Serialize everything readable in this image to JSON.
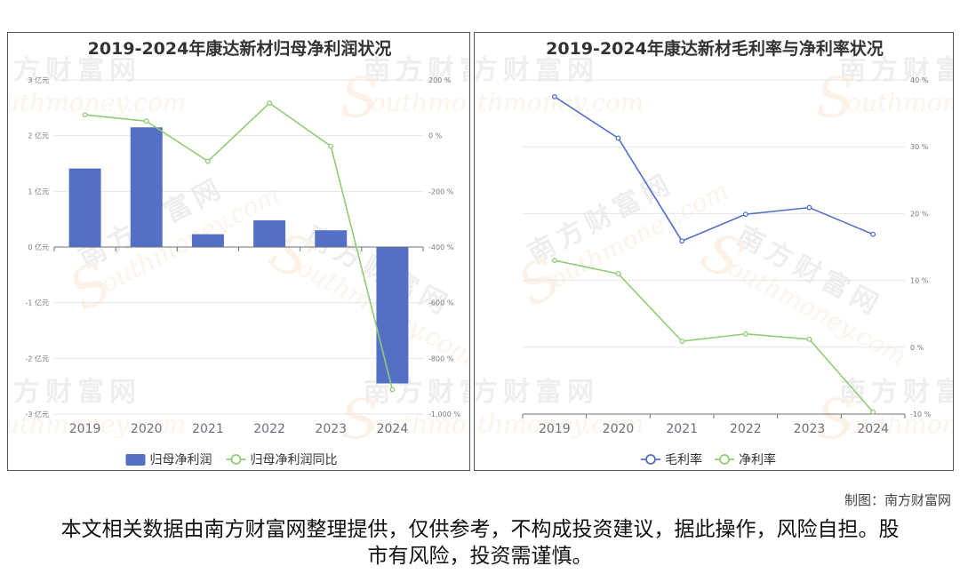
{
  "charts": [
    {
      "type": "bar+line",
      "title": "2019-2024年康达新材归母净利润状况",
      "categories": [
        "2019",
        "2020",
        "2021",
        "2022",
        "2023",
        "2024"
      ],
      "left_axis": {
        "ticks": [
          "3 亿元",
          "2 亿元",
          "1 亿元",
          "0 亿元",
          "-1 亿元",
          "-2 亿元",
          "-3 亿元"
        ],
        "range": [
          -3,
          3
        ]
      },
      "right_axis": {
        "ticks": [
          "200 %",
          "0 %",
          "-200 %",
          "-400 %",
          "-600 %",
          "-800 %",
          "-1,000 %"
        ],
        "range": [
          -1000,
          200
        ]
      },
      "series": [
        {
          "name": "归母净利润",
          "kind": "bar",
          "axis": "left",
          "color": "#5470c6",
          "values": [
            1.41,
            2.15,
            0.23,
            0.48,
            0.3,
            -2.45
          ]
        },
        {
          "name": "归母净利润同比",
          "kind": "line",
          "axis": "right",
          "color": "#91cc75",
          "values": [
            75,
            52,
            -92,
            117,
            -38,
            -912
          ]
        }
      ],
      "legend": "bottom-center"
    },
    {
      "type": "line",
      "title": "2019-2024年康达新材毛利率与净利率状况",
      "categories": [
        "2019",
        "2020",
        "2021",
        "2022",
        "2023",
        "2024"
      ],
      "right_axis": {
        "ticks": [
          "40 %",
          "30 %",
          "20 %",
          "10 %",
          "0 %",
          "-10 %"
        ],
        "range": [
          -10,
          40
        ]
      },
      "series": [
        {
          "name": "毛利率",
          "kind": "line",
          "axis": "right",
          "color": "#5470c6",
          "values": [
            37.5,
            31.3,
            15.9,
            19.9,
            20.9,
            16.9
          ]
        },
        {
          "name": "净利率",
          "kind": "line",
          "axis": "right",
          "color": "#91cc75",
          "values": [
            13.0,
            11.0,
            0.9,
            2.0,
            1.2,
            -9.7
          ]
        }
      ],
      "legend": "bottom-center"
    }
  ],
  "watermark": {
    "cn": "南方财富网",
    "en": "outhmoney.com",
    "s": "S"
  },
  "credit": "制图：南方财富网",
  "disclaimer": "本文相关数据由南方财富网整理提供，仅供参考，不构成投资建议，据此操作，风险自担。股市有风险，投资需谨慎。"
}
